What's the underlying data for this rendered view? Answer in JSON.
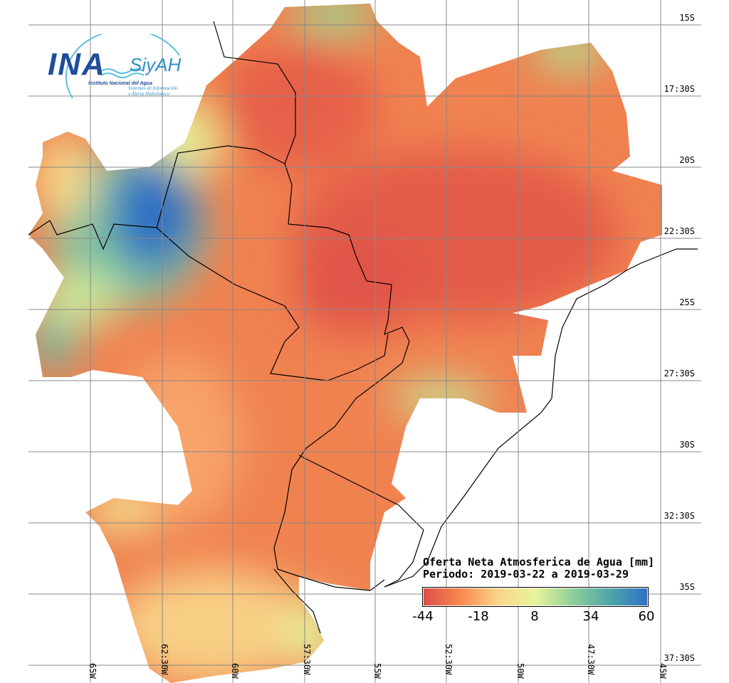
{
  "logo": {
    "main": "INA",
    "secondary": "SiyAH",
    "institute": "Instituto Nacional del Agua",
    "system_line1": "Sistemas de Información",
    "system_line2": "y Alerta Hidrológico"
  },
  "legend": {
    "title": "Oferta Neta Atmosferica de Agua [mm]",
    "period": "Periodo: 2019-03-22 a 2019-03-29",
    "ticks": [
      "-44",
      "-18",
      "8",
      "34",
      "60"
    ],
    "min": -44,
    "max": 60,
    "colors": [
      "#de4f4a",
      "#f8894f",
      "#fbd58b",
      "#e8f49a",
      "#8fcf9a",
      "#4fa6aa",
      "#2d72c4"
    ]
  },
  "lat_labels": [
    "15S",
    "17:30S",
    "20S",
    "22:30S",
    "25S",
    "27:30S",
    "30S",
    "32:30S",
    "35S",
    "37:30S"
  ],
  "lon_labels": [
    "65W",
    "62:30W",
    "60W",
    "57:30W",
    "55W",
    "52:30W",
    "50W",
    "47:30W",
    "45W"
  ]
}
